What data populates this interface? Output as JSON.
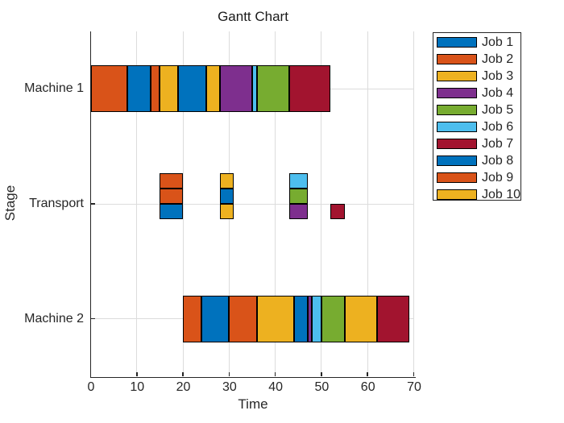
{
  "title": "Gantt Chart",
  "axes": {
    "xlabel": "Time",
    "ylabel": "Stage",
    "x_ticks": [
      0,
      10,
      20,
      30,
      40,
      50,
      60,
      70
    ],
    "y_categories": [
      "Machine 1",
      "Transport",
      "Machine 2"
    ]
  },
  "legend": {
    "entries": [
      {
        "label": "Job 1",
        "color": "#0072BD"
      },
      {
        "label": "Job 2",
        "color": "#D95319"
      },
      {
        "label": "Job 3",
        "color": "#EDB120"
      },
      {
        "label": "Job 4",
        "color": "#7E2F8E"
      },
      {
        "label": "Job 5",
        "color": "#77AC30"
      },
      {
        "label": "Job 6",
        "color": "#4DBEEE"
      },
      {
        "label": "Job 7",
        "color": "#A2142F"
      },
      {
        "label": "Job 8",
        "color": "#0072BD"
      },
      {
        "label": "Job 9",
        "color": "#D95319"
      },
      {
        "label": "Job 10",
        "color": "#EDB120"
      }
    ]
  },
  "chart_data": {
    "type": "gantt",
    "title": "Gantt Chart",
    "xlabel": "Time",
    "ylabel": "Stage",
    "xlim": [
      0,
      70
    ],
    "x_ticks": [
      0,
      10,
      20,
      30,
      40,
      50,
      60,
      70
    ],
    "rows": [
      "Machine 1",
      "Transport",
      "Machine 2"
    ],
    "grid": true,
    "legend_position": "outside-right",
    "machine1_segments": [
      {
        "job": "Job 2",
        "start": 0,
        "end": 8
      },
      {
        "job": "Job 1",
        "start": 8,
        "end": 13
      },
      {
        "job": "Job 9",
        "start": 13,
        "end": 15
      },
      {
        "job": "Job 3",
        "start": 15,
        "end": 19
      },
      {
        "job": "Job 8",
        "start": 19,
        "end": 25
      },
      {
        "job": "Job 10",
        "start": 25,
        "end": 28
      },
      {
        "job": "Job 4",
        "start": 28,
        "end": 35
      },
      {
        "job": "Job 6",
        "start": 35,
        "end": 36
      },
      {
        "job": "Job 5",
        "start": 36,
        "end": 43
      },
      {
        "job": "Job 7",
        "start": 43,
        "end": 52
      }
    ],
    "transport_segments": [
      {
        "job": "Job 1",
        "start": 15,
        "end": 20,
        "level": 0
      },
      {
        "job": "Job 2",
        "start": 15,
        "end": 20,
        "level": 1
      },
      {
        "job": "Job 9",
        "start": 15,
        "end": 20,
        "level": 2
      },
      {
        "job": "Job 3",
        "start": 28,
        "end": 31,
        "level": 0
      },
      {
        "job": "Job 8",
        "start": 28,
        "end": 31,
        "level": 1
      },
      {
        "job": "Job 10",
        "start": 28,
        "end": 31,
        "level": 2
      },
      {
        "job": "Job 4",
        "start": 43,
        "end": 47,
        "level": 0
      },
      {
        "job": "Job 5",
        "start": 43,
        "end": 47,
        "level": 1
      },
      {
        "job": "Job 6",
        "start": 43,
        "end": 47,
        "level": 2
      },
      {
        "job": "Job 7",
        "start": 52,
        "end": 55,
        "level": 0
      }
    ],
    "machine2_segments": [
      {
        "job": "Job 2",
        "start": 20,
        "end": 24
      },
      {
        "job": "Job 1",
        "start": 24,
        "end": 30
      },
      {
        "job": "Job 9",
        "start": 30,
        "end": 36
      },
      {
        "job": "Job 3",
        "start": 36,
        "end": 44
      },
      {
        "job": "Job 8",
        "start": 44,
        "end": 47
      },
      {
        "job": "Job 4",
        "start": 47,
        "end": 48
      },
      {
        "job": "Job 6",
        "start": 48,
        "end": 50
      },
      {
        "job": "Job 5",
        "start": 50,
        "end": 55
      },
      {
        "job": "Job 10",
        "start": 55,
        "end": 62
      },
      {
        "job": "Job 7",
        "start": 62,
        "end": 69
      }
    ]
  },
  "colors": {
    "axis": "#262626",
    "grid": "#dcdcdc",
    "bar_edge": "#000000",
    "background": "#ffffff"
  }
}
